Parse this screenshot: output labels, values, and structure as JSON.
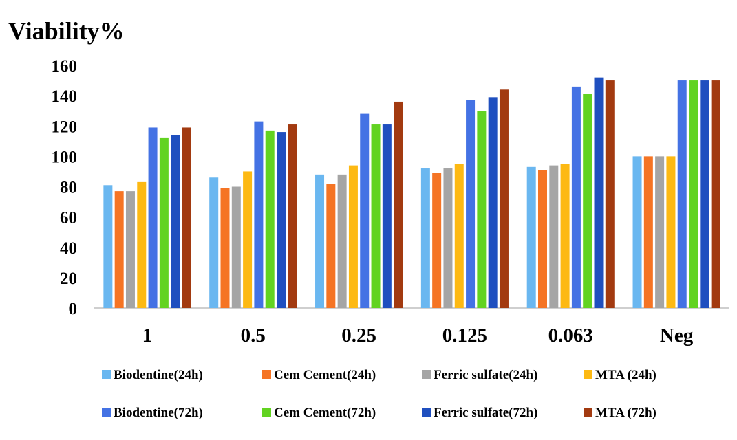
{
  "chart_data": {
    "type": "bar",
    "title": "",
    "xlabel": "",
    "ylabel": "Viability%",
    "ylim": [
      0,
      160
    ],
    "yticks": [
      0,
      20,
      40,
      60,
      80,
      100,
      120,
      140,
      160
    ],
    "grid": false,
    "legend_position": "bottom",
    "categories": [
      "1",
      "0.5",
      "0.25",
      "0.125",
      "0.063",
      "Neg"
    ],
    "series": [
      {
        "name": "Biodentine(24h)",
        "color": "#6ab7f0",
        "values": [
          81,
          86,
          88,
          92,
          93,
          100
        ]
      },
      {
        "name": "Cem Cement(24h)",
        "color": "#f57424",
        "values": [
          77,
          79,
          82,
          89,
          91,
          100
        ]
      },
      {
        "name": "Ferric sulfate(24h)",
        "color": "#a5a5a5",
        "values": [
          77,
          80,
          88,
          92,
          94,
          100
        ]
      },
      {
        "name": "MTA (24h)",
        "color": "#fdb913",
        "values": [
          83,
          90,
          94,
          95,
          95,
          100
        ]
      },
      {
        "name": "Biodentine(72h)",
        "color": "#4472e4",
        "values": [
          119,
          123,
          128,
          137,
          146,
          150
        ]
      },
      {
        "name": "Cem Cement(72h)",
        "color": "#62d321",
        "values": [
          112,
          117,
          121,
          130,
          141,
          150
        ]
      },
      {
        "name": "Ferric sulfate(72h)",
        "color": "#1f4fbf",
        "values": [
          114,
          116,
          121,
          139,
          152,
          150
        ]
      },
      {
        "name": "MTA (72h)",
        "color": "#a23a10",
        "values": [
          119,
          121,
          136,
          144,
          150,
          150
        ]
      }
    ]
  }
}
